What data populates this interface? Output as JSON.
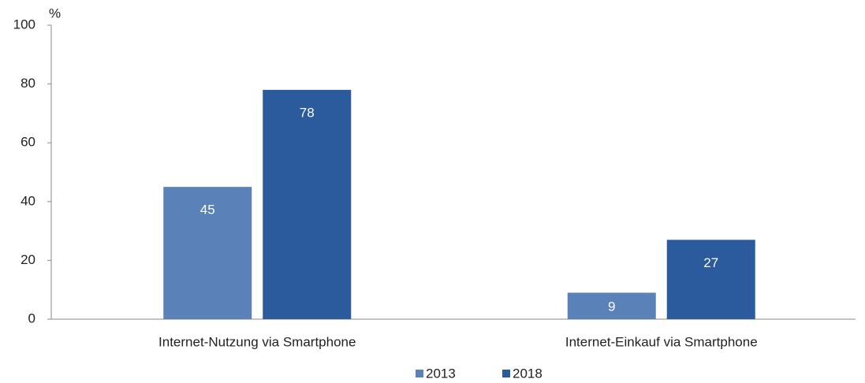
{
  "chart_data": {
    "type": "bar",
    "ylabel": "%",
    "categories": [
      "Internet-Nutzung via Smartphone",
      "Internet-Einkauf via Smartphone"
    ],
    "series": [
      {
        "name": "2013",
        "color": "#5b82b8",
        "values": [
          45,
          9
        ]
      },
      {
        "name": "2018",
        "color": "#2b5b9c",
        "values": [
          78,
          27
        ]
      }
    ],
    "ylim": [
      0,
      100
    ],
    "yticks": [
      0,
      20,
      40,
      60,
      80,
      100
    ],
    "grid": false,
    "legend": "bottom"
  }
}
